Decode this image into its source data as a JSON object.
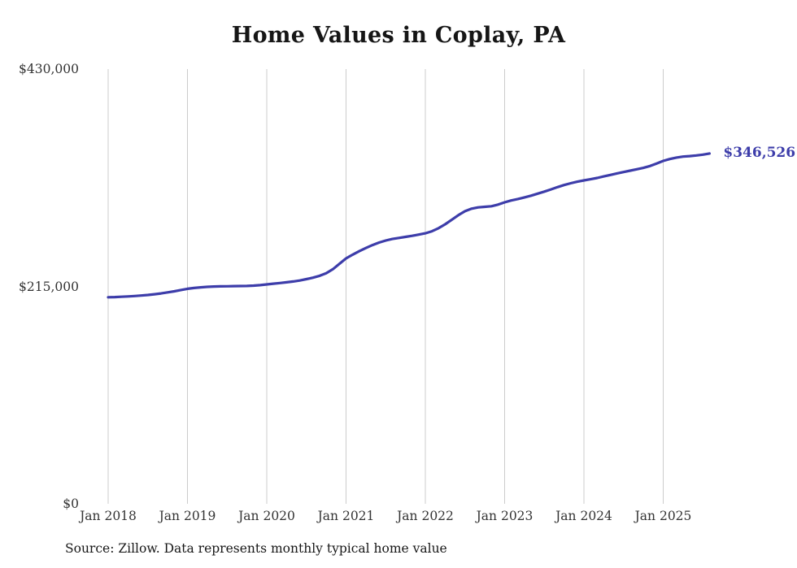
{
  "chart_data": {
    "type": "line",
    "title": "Home Values in Coplay, PA",
    "source": "Source: Zillow. Data represents monthly typical home value",
    "end_label": "$346,526",
    "series_name": "Monthly typical home value",
    "legend_position": "none",
    "grid": "vertical-only",
    "colors": {
      "line": "#3d3daa",
      "grid": "#cccccc",
      "title": "#161616",
      "tick": "#333333"
    },
    "ylim": [
      0,
      430000
    ],
    "y_ticks": [
      {
        "value": 0,
        "label": "$0"
      },
      {
        "value": 215000,
        "label": "$215,000"
      },
      {
        "value": 430000,
        "label": "$430,000"
      }
    ],
    "x_tick_labels": [
      "Jan 2018",
      "Jan 2019",
      "Jan 2020",
      "Jan 2021",
      "Jan 2022",
      "Jan 2023",
      "Jan 2024",
      "Jan 2025"
    ],
    "start_month": "Jan 2018",
    "end_month": "Aug 2025",
    "values": [
      204300,
      204500,
      204800,
      205100,
      205500,
      206000,
      206600,
      207300,
      208100,
      209100,
      210200,
      211500,
      212700,
      213500,
      214100,
      214600,
      214900,
      215100,
      215200,
      215300,
      215400,
      215500,
      215800,
      216300,
      217000,
      217700,
      218400,
      219100,
      219900,
      220900,
      222200,
      223700,
      225500,
      228000,
      232000,
      237400,
      242700,
      246400,
      249900,
      253000,
      255900,
      258400,
      260400,
      261900,
      263000,
      264000,
      265100,
      266300,
      267600,
      269600,
      272600,
      276500,
      281000,
      285500,
      289400,
      291900,
      293200,
      293800,
      294300,
      295900,
      298200,
      300000,
      301500,
      303100,
      304800,
      306800,
      308800,
      311000,
      313200,
      315300,
      317100,
      318600,
      319900,
      321000,
      322300,
      323800,
      325300,
      326800,
      328200,
      329500,
      330900,
      332300,
      334100,
      336600,
      339200,
      341000,
      342500,
      343400,
      343900,
      344600,
      345400,
      346526
    ]
  }
}
